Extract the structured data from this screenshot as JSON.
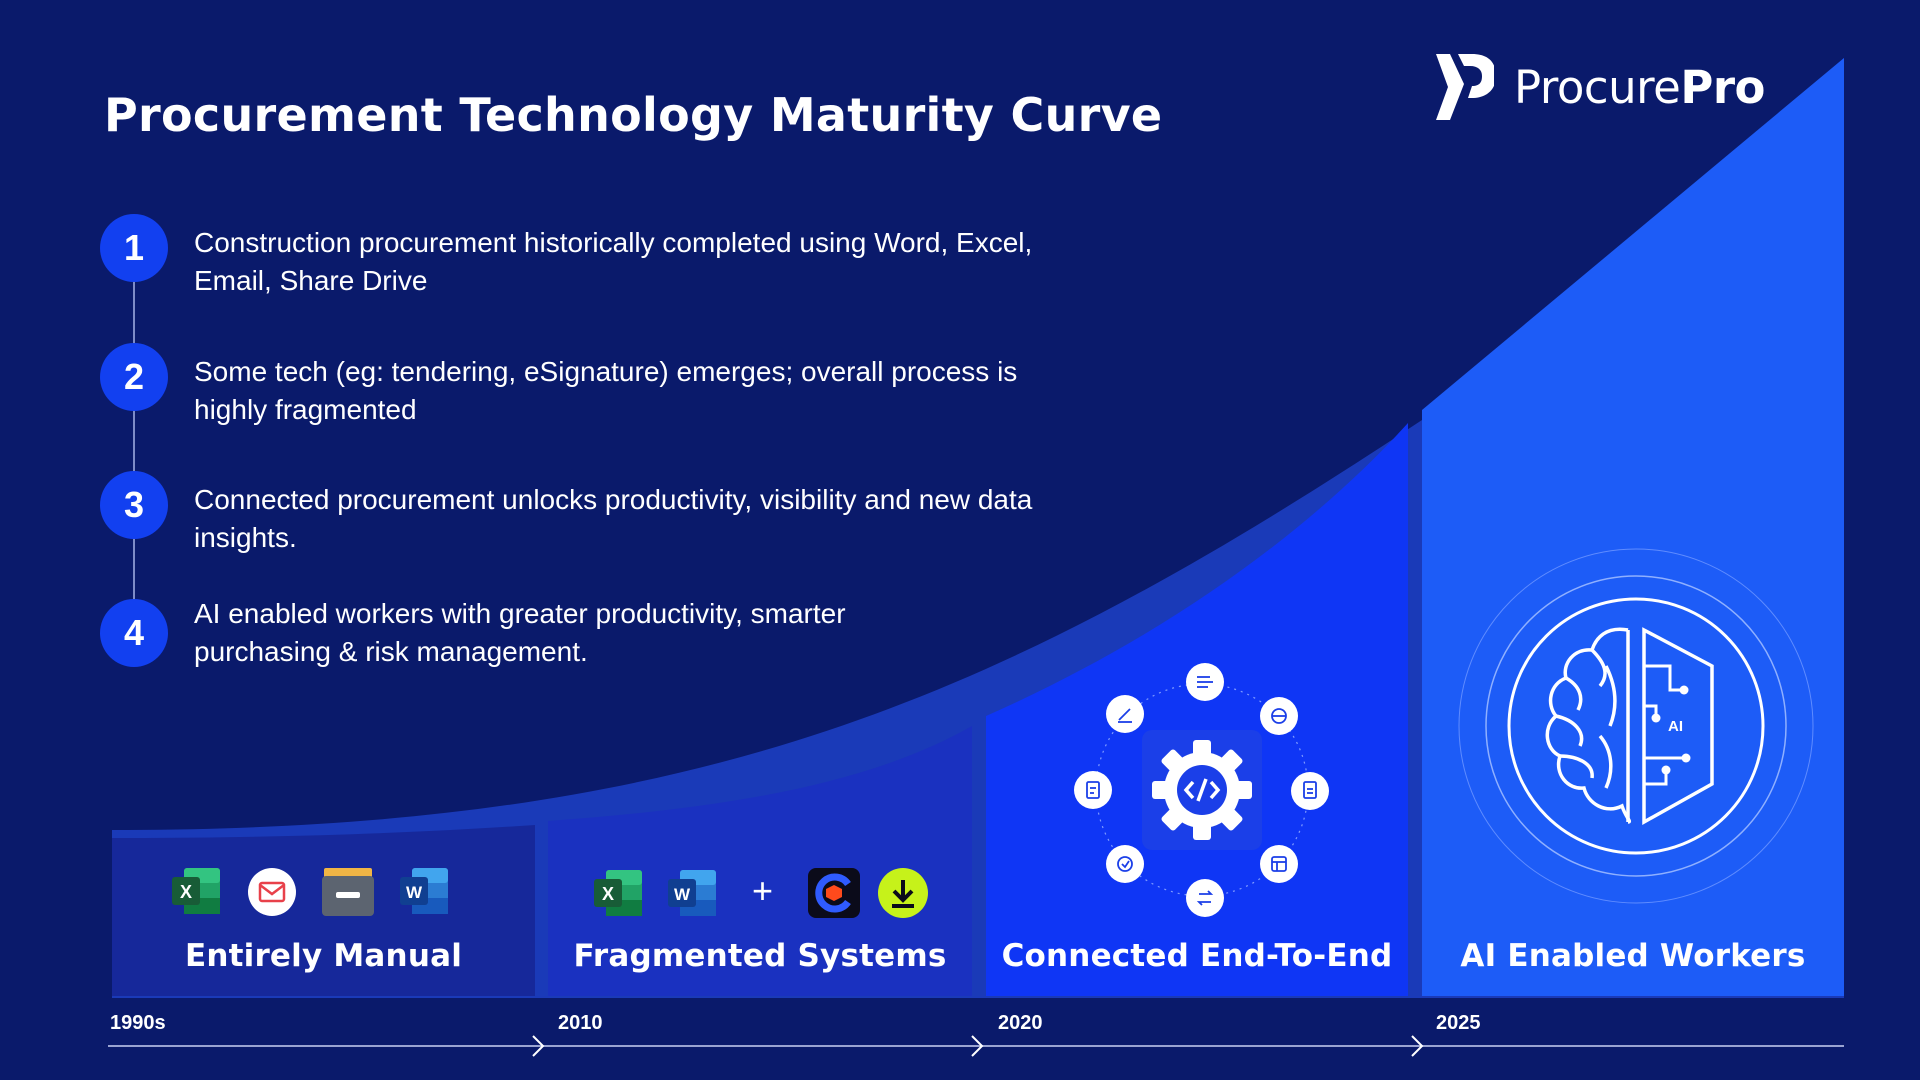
{
  "title": "Procurement Technology Maturity Curve",
  "logo": {
    "light": "Procure",
    "bold": "Pro"
  },
  "steps": [
    {
      "num": "1",
      "text": "Construction procurement historically completed using Word, Excel, Email, Share Drive"
    },
    {
      "num": "2",
      "text": "Some tech (eg: tendering, eSignature) emerges; overall process is highly fragmented"
    },
    {
      "num": "3",
      "text": "Connected procurement unlocks productivity, visibility and new data insights."
    },
    {
      "num": "4",
      "text": "AI enabled workers with greater productivity, smarter purchasing & risk management."
    }
  ],
  "stages": [
    {
      "label": "Entirely Manual",
      "year": "1990s",
      "icons": [
        "excel-icon",
        "email-icon",
        "drive-icon",
        "word-icon"
      ]
    },
    {
      "label": "Fragmented Systems",
      "year": "2010",
      "icons": [
        "excel-icon",
        "word-icon",
        "plus-icon",
        "tender-app-icon",
        "download-icon"
      ]
    },
    {
      "label": "Connected End-To-End",
      "year": "2020",
      "icons": [
        "integration-gear-icon"
      ]
    },
    {
      "label": "AI Enabled Workers",
      "year": "2025",
      "icons": [
        "ai-brain-icon"
      ]
    }
  ],
  "plus_sign": "+",
  "ai_chip_label": "AI",
  "colors": {
    "background": "#0a1a6b",
    "curve": "#1c3fcf",
    "stage1": "#16289a",
    "stage2": "#1a31c0",
    "stage3": "#0f36f5",
    "stage4": "#1d5cf7",
    "step_circle": "#1240f0",
    "download_green": "#c6f21a"
  }
}
